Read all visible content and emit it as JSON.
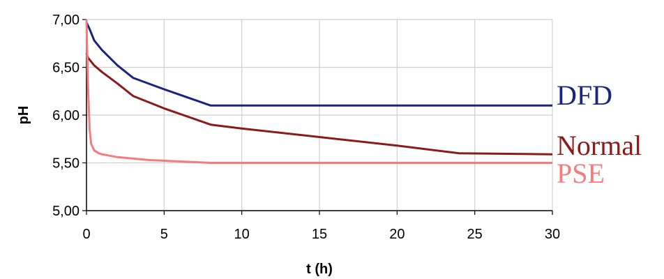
{
  "chart_data": {
    "type": "line",
    "xlabel": "t (h)",
    "ylabel": "pH",
    "xlim": [
      0,
      30
    ],
    "ylim": [
      5.0,
      7.0
    ],
    "x_ticks": [
      0,
      5,
      10,
      15,
      20,
      25,
      30
    ],
    "y_ticks": [
      5.0,
      5.5,
      6.0,
      6.5,
      7.0
    ],
    "x_tick_labels": [
      "0",
      "5",
      "10",
      "15",
      "20",
      "25",
      "30"
    ],
    "y_tick_labels": [
      "5,00",
      "5,50",
      "6,00",
      "6,50",
      "7,00"
    ],
    "grid": true,
    "legend": "inline-right",
    "series": [
      {
        "name": "DFD",
        "color": "#1a237e",
        "x": [
          0,
          0.2,
          0.5,
          1,
          2,
          3,
          5,
          8,
          10,
          20,
          30
        ],
        "y": [
          6.97,
          6.9,
          6.78,
          6.68,
          6.52,
          6.39,
          6.27,
          6.1,
          6.1,
          6.1,
          6.1
        ]
      },
      {
        "name": "Normal",
        "color": "#8b1a1a",
        "x": [
          0,
          0.1,
          0.5,
          1,
          2,
          3,
          5,
          8,
          10,
          15,
          20,
          24,
          30
        ],
        "y": [
          6.65,
          6.6,
          6.52,
          6.45,
          6.33,
          6.2,
          6.07,
          5.9,
          5.86,
          5.77,
          5.68,
          5.6,
          5.59
        ]
      },
      {
        "name": "PSE",
        "color": "#f47c7c",
        "x": [
          0,
          0.1,
          0.2,
          0.3,
          0.5,
          0.8,
          1,
          2,
          4,
          8,
          15,
          30
        ],
        "y": [
          7.0,
          6.3,
          5.85,
          5.7,
          5.63,
          5.6,
          5.59,
          5.56,
          5.53,
          5.5,
          5.5,
          5.5
        ]
      }
    ]
  }
}
